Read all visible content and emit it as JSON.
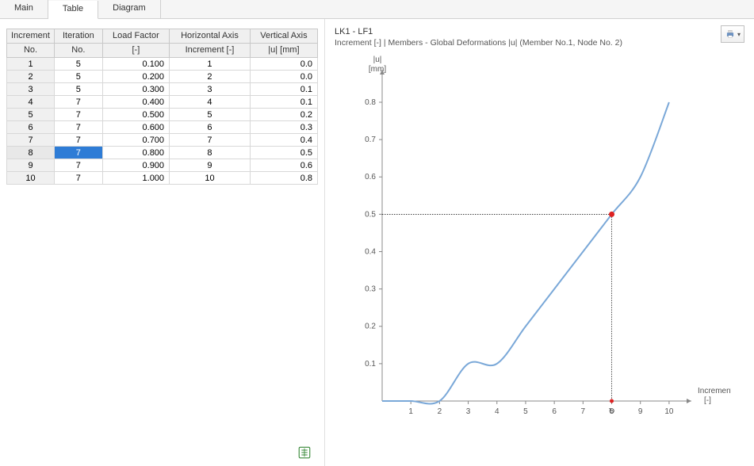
{
  "tabs": {
    "items": [
      "Main",
      "Table",
      "Diagram"
    ],
    "active_index": 1
  },
  "table": {
    "columns": [
      {
        "l1": "Increment",
        "l2": "No."
      },
      {
        "l1": "Iteration",
        "l2": "No."
      },
      {
        "l1": "Load Factor",
        "l2": "[-]"
      },
      {
        "l1": "Horizontal Axis",
        "l2": "Increment [-]"
      },
      {
        "l1": "Vertical Axis",
        "l2": "|u| [mm]"
      }
    ],
    "rows": [
      {
        "inc": "1",
        "iter": "5",
        "lf": "0.100",
        "hx": "1",
        "vy": "0.0"
      },
      {
        "inc": "2",
        "iter": "5",
        "lf": "0.200",
        "hx": "2",
        "vy": "0.0"
      },
      {
        "inc": "3",
        "iter": "5",
        "lf": "0.300",
        "hx": "3",
        "vy": "0.1"
      },
      {
        "inc": "4",
        "iter": "7",
        "lf": "0.400",
        "hx": "4",
        "vy": "0.1"
      },
      {
        "inc": "5",
        "iter": "7",
        "lf": "0.500",
        "hx": "5",
        "vy": "0.2"
      },
      {
        "inc": "6",
        "iter": "7",
        "lf": "0.600",
        "hx": "6",
        "vy": "0.3"
      },
      {
        "inc": "7",
        "iter": "7",
        "lf": "0.700",
        "hx": "7",
        "vy": "0.4"
      },
      {
        "inc": "8",
        "iter": "7",
        "lf": "0.800",
        "hx": "8",
        "vy": "0.5"
      },
      {
        "inc": "9",
        "iter": "7",
        "lf": "0.900",
        "hx": "9",
        "vy": "0.6"
      },
      {
        "inc": "10",
        "iter": "7",
        "lf": "1.000",
        "hx": "10",
        "vy": "0.8"
      }
    ],
    "selected_row": 7,
    "selected_col": "iter"
  },
  "chart": {
    "title": "LK1 - LF1",
    "subtitle": "Increment [-] | Members - Global Deformations |u| (Member No.1, Node No. 2)",
    "type": "line",
    "ylabel_l1": "|u|",
    "ylabel_l2": "[mm]",
    "xlabel_l1": "Increment",
    "xlabel_l2": "[-]",
    "xlim": [
      0,
      10.5
    ],
    "ylim": [
      0,
      0.87
    ],
    "xticks": [
      1,
      2,
      3,
      4,
      5,
      6,
      7,
      8,
      9,
      10
    ],
    "yticks": [
      0.1,
      0.2,
      0.3,
      0.4,
      0.5,
      0.6,
      0.7,
      0.8
    ],
    "data_x": [
      0,
      1,
      2,
      3,
      4,
      5,
      6,
      7,
      8,
      9,
      10
    ],
    "data_y": [
      0,
      0.0,
      0.0,
      0.1,
      0.1,
      0.2,
      0.3,
      0.4,
      0.5,
      0.6,
      0.8
    ],
    "highlight_x": 8,
    "highlight_y": 0.5,
    "curve_color": "#7aa8d8",
    "marker_color": "#d22222",
    "axis_color": "#888888",
    "tick_font_size": 10,
    "background_color": "#ffffff"
  },
  "colors": {
    "selection_bg": "#2e7cd6",
    "header_bg": "#f0f0f0"
  }
}
